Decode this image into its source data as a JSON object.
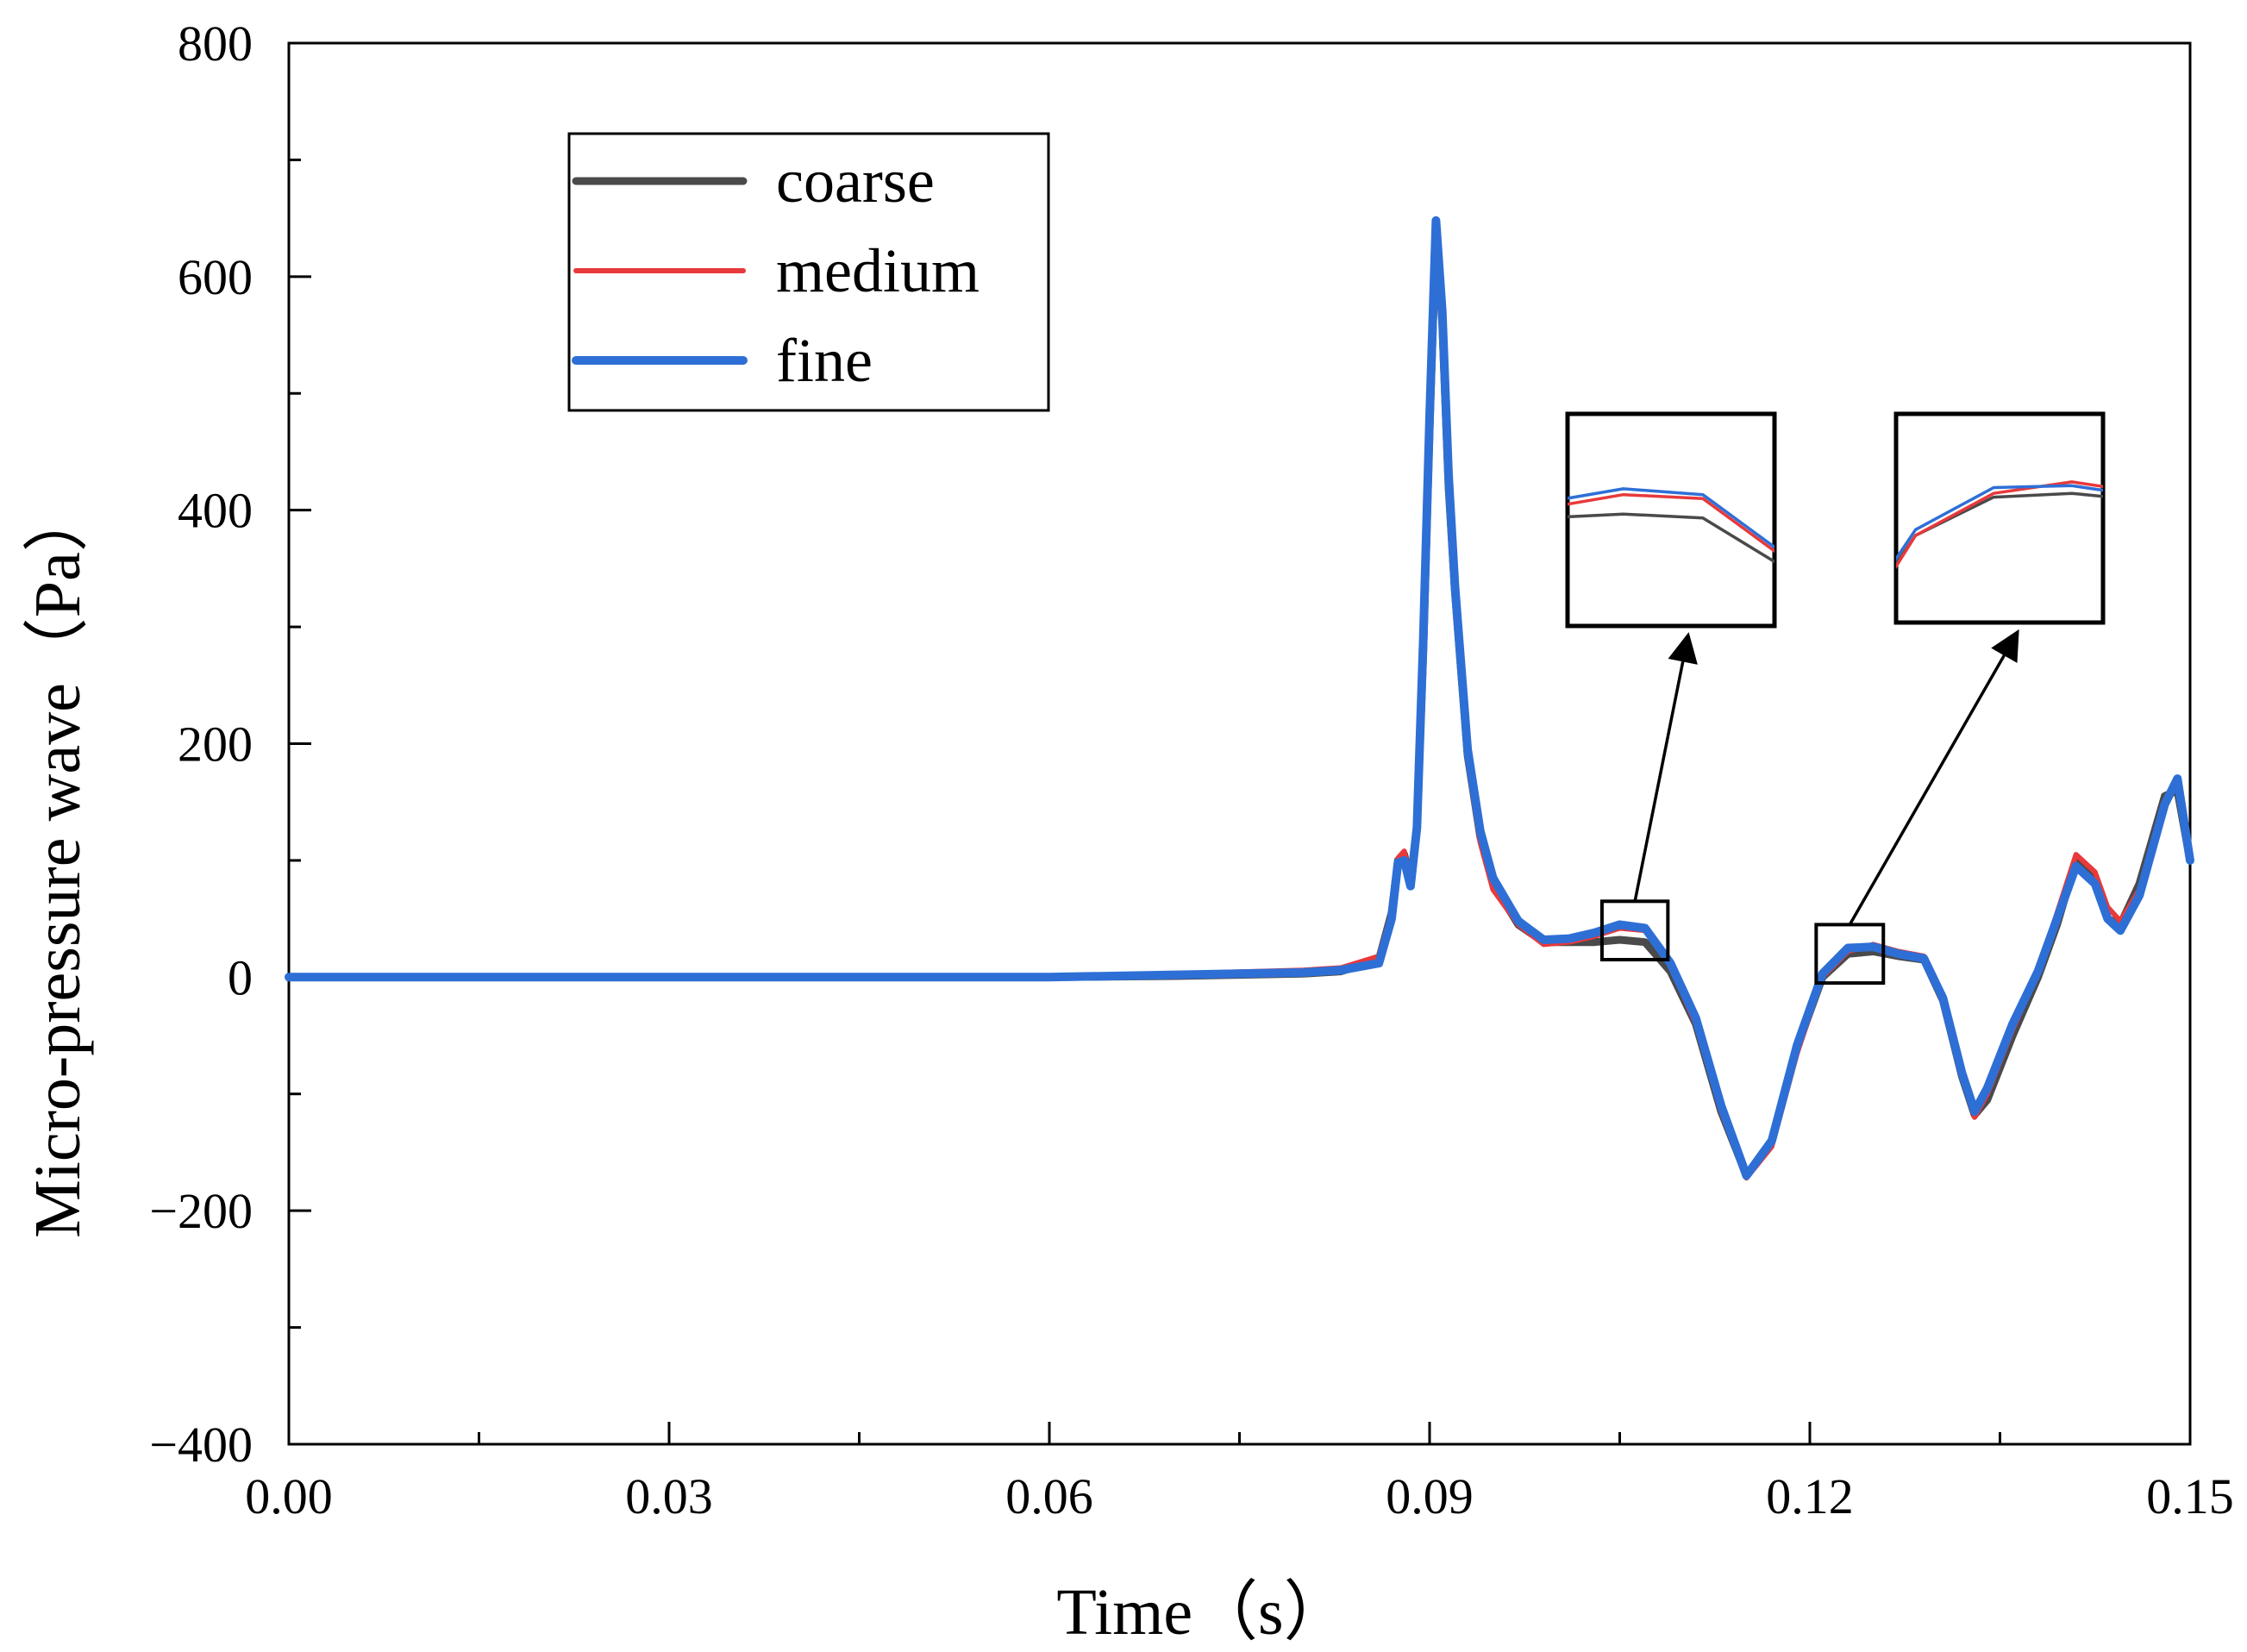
{
  "chart_data": {
    "type": "line",
    "title": "",
    "xlabel": "Time（s）",
    "ylabel": "Micro-pressure wave（Pa）",
    "xlim": [
      0.0,
      0.15
    ],
    "ylim": [
      -400,
      800
    ],
    "x_ticks": [
      0.0,
      0.03,
      0.06,
      0.09,
      0.12,
      0.15
    ],
    "x_tick_labels": [
      "0.00",
      "0.03",
      "0.06",
      "0.09",
      "0.12",
      "0.15"
    ],
    "y_ticks": [
      -400,
      -200,
      0,
      200,
      400,
      600,
      800
    ],
    "y_tick_labels": [
      "−400",
      "−200",
      "0",
      "200",
      "400",
      "600",
      "800"
    ],
    "grid": false,
    "legend_position": "top-left",
    "colors": {
      "coarse": "#4a4a4a",
      "medium": "#e8393b",
      "fine": "#2e6fd6"
    },
    "x": [
      0.0,
      0.02,
      0.04,
      0.06,
      0.07,
      0.08,
      0.083,
      0.086,
      0.087,
      0.0875,
      0.088,
      0.0885,
      0.089,
      0.0895,
      0.09,
      0.0905,
      0.091,
      0.0915,
      0.092,
      0.093,
      0.094,
      0.095,
      0.097,
      0.099,
      0.101,
      0.103,
      0.105,
      0.107,
      0.109,
      0.111,
      0.113,
      0.115,
      0.117,
      0.119,
      0.121,
      0.123,
      0.125,
      0.127,
      0.129,
      0.1305,
      0.132,
      0.133,
      0.134,
      0.136,
      0.138,
      0.1395,
      0.141,
      0.1425,
      0.1435,
      0.1445,
      0.146,
      0.148,
      0.149,
      0.15
    ],
    "series": [
      {
        "name": "coarse",
        "values": [
          0,
          0,
          0,
          0,
          1,
          3,
          5,
          15,
          55,
          100,
          105,
          80,
          130,
          280,
          470,
          640,
          560,
          420,
          330,
          190,
          120,
          80,
          45,
          30,
          30,
          30,
          32,
          30,
          5,
          -40,
          -115,
          -170,
          -140,
          -60,
          0,
          20,
          22,
          18,
          15,
          -20,
          -85,
          -118,
          -105,
          -50,
          0,
          45,
          100,
          85,
          50,
          45,
          80,
          155,
          160,
          100
        ]
      },
      {
        "name": "medium",
        "values": [
          0,
          0,
          0,
          1,
          3,
          6,
          8,
          18,
          55,
          102,
          108,
          82,
          135,
          285,
          475,
          635,
          550,
          410,
          320,
          185,
          115,
          75,
          45,
          28,
          30,
          35,
          42,
          40,
          10,
          -40,
          -115,
          -172,
          -145,
          -65,
          0,
          22,
          28,
          22,
          18,
          -15,
          -85,
          -120,
          -100,
          -45,
          5,
          55,
          105,
          90,
          60,
          48,
          75,
          150,
          165,
          100
        ]
      },
      {
        "name": "fine",
        "values": [
          0,
          0,
          0,
          0,
          2,
          4,
          6,
          12,
          50,
          98,
          100,
          78,
          128,
          290,
          480,
          648,
          570,
          430,
          335,
          195,
          125,
          85,
          48,
          32,
          33,
          38,
          45,
          42,
          12,
          -35,
          -110,
          -170,
          -140,
          -58,
          3,
          25,
          26,
          20,
          16,
          -18,
          -82,
          -115,
          -95,
          -40,
          5,
          50,
          95,
          80,
          50,
          40,
          70,
          148,
          170,
          100
        ]
      }
    ],
    "insets": [
      {
        "source_x": [
          0.1036,
          0.1088
        ],
        "source_y": [
          15,
          65
        ],
        "target": "upper-left inset"
      },
      {
        "source_x": [
          0.1205,
          0.1258
        ],
        "source_y": [
          -5,
          45
        ],
        "target": "upper-right inset"
      }
    ]
  }
}
